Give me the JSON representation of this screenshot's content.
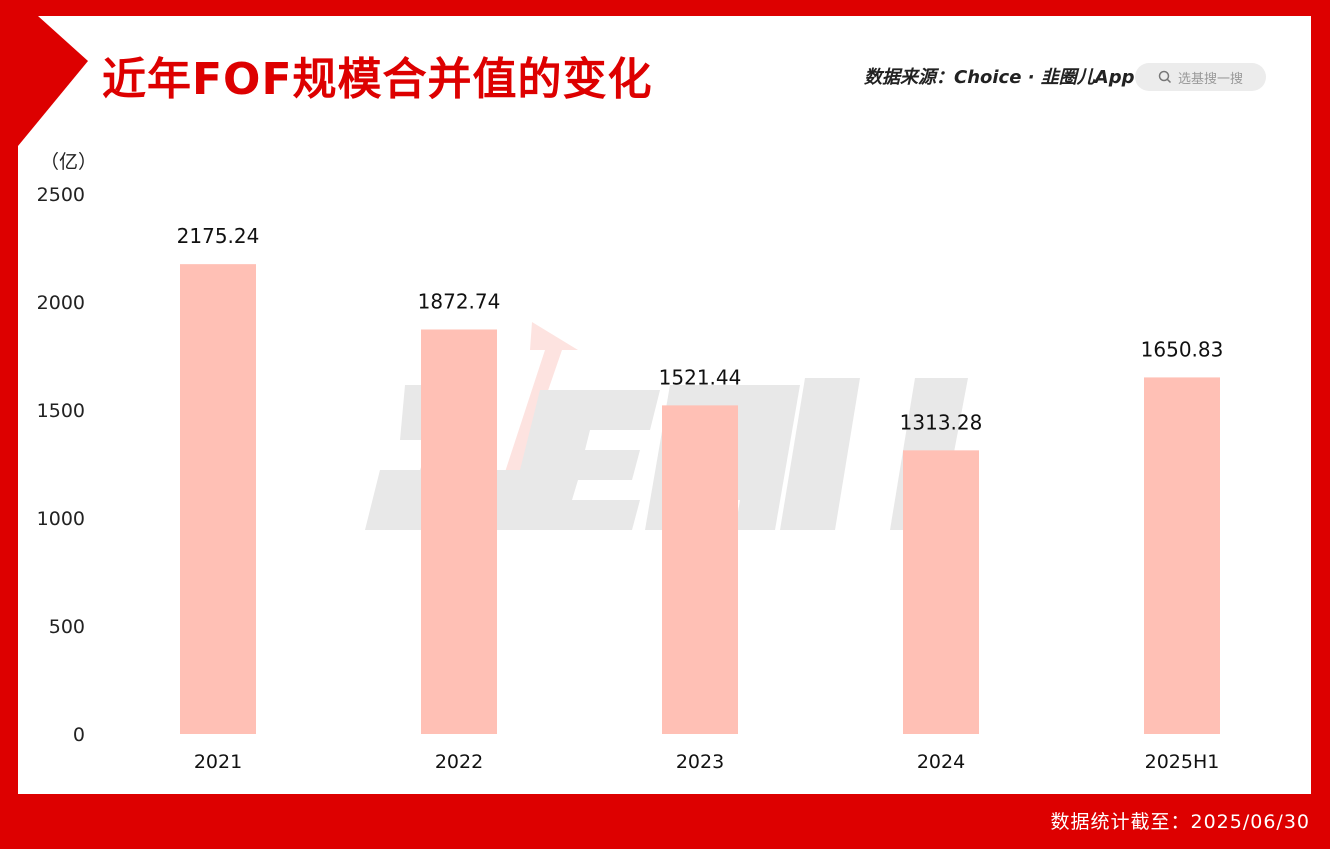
{
  "header": {
    "title": "近年FOF规模合并值的变化",
    "source": "数据来源：Choice · 韭圈儿App",
    "search_placeholder": "选基搜一搜"
  },
  "footer": {
    "note": "数据统计截至：2025/06/30"
  },
  "colors": {
    "brand": "#dd0000",
    "bar": "#ffc0b5",
    "watermark": "#e8e8e8"
  },
  "watermark": {
    "icon": "brand-logo-watermark"
  },
  "chart_data": {
    "type": "bar",
    "unit_label": "（亿）",
    "categories": [
      "2021",
      "2022",
      "2023",
      "2024",
      "2025H1"
    ],
    "values": [
      2175.24,
      1872.74,
      1521.44,
      1313.28,
      1650.83
    ],
    "value_labels": [
      "2175.24",
      "1872.74",
      "1521.44",
      "1313.28",
      "1650.83"
    ],
    "ylim": [
      0,
      2500
    ],
    "yticks": [
      0,
      500,
      1000,
      1500,
      2000,
      2500
    ],
    "grid": false,
    "legend": "none"
  }
}
